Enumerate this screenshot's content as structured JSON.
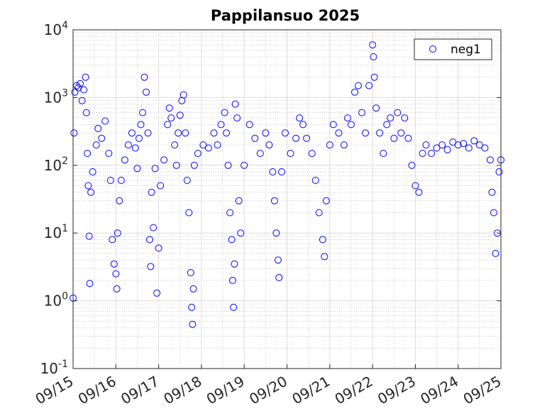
{
  "chart_data": {
    "type": "scatter",
    "title": "Pappilansuo 2025",
    "xlabel": "",
    "ylabel": "",
    "x_axis": {
      "type": "date",
      "range": [
        "2025-09-15",
        "2025-09-25"
      ],
      "tick_values": [
        "2025-09-15",
        "2025-09-16",
        "2025-09-17",
        "2025-09-18",
        "2025-09-19",
        "2025-09-20",
        "2025-09-21",
        "2025-09-22",
        "2025-09-23",
        "2025-09-24",
        "2025-09-25"
      ],
      "tick_labels": [
        "09/15",
        "09/16",
        "09/17",
        "09/18",
        "09/19",
        "09/20",
        "09/21",
        "09/22",
        "09/23",
        "09/24",
        "09/25"
      ]
    },
    "y_axis": {
      "scale": "log",
      "range": [
        0.1,
        10000
      ],
      "tick_values": [
        0.1,
        1,
        10,
        100,
        1000,
        10000
      ],
      "tick_labels": [
        {
          "base": "10",
          "exp": "-1"
        },
        {
          "base": "10",
          "exp": "0"
        },
        {
          "base": "10",
          "exp": "1"
        },
        {
          "base": "10",
          "exp": "2"
        },
        {
          "base": "10",
          "exp": "3"
        },
        {
          "base": "10",
          "exp": "4"
        }
      ]
    },
    "grid": {
      "major": true,
      "minor": true
    },
    "legend": {
      "placement": "top-right",
      "entries": [
        "neg1"
      ]
    },
    "series": [
      {
        "name": "neg1",
        "color": "#0000ff",
        "marker": "open-circle",
        "points": [
          [
            "2025-09-15T00:00",
            1.1
          ],
          [
            "2025-09-15T00:30",
            300
          ],
          [
            "2025-09-15T01:00",
            1200
          ],
          [
            "2025-09-15T02:00",
            1500
          ],
          [
            "2025-09-15T03:00",
            1400
          ],
          [
            "2025-09-15T04:00",
            1600
          ],
          [
            "2025-09-15T05:00",
            900
          ],
          [
            "2025-09-15T06:00",
            1300
          ],
          [
            "2025-09-15T07:00",
            2000
          ],
          [
            "2025-09-15T07:30",
            600
          ],
          [
            "2025-09-15T08:00",
            150
          ],
          [
            "2025-09-15T08:30",
            50
          ],
          [
            "2025-09-15T09:00",
            9
          ],
          [
            "2025-09-15T09:20",
            1.8
          ],
          [
            "2025-09-15T10:00",
            40
          ],
          [
            "2025-09-15T11:00",
            80
          ],
          [
            "2025-09-15T13:00",
            200
          ],
          [
            "2025-09-15T14:00",
            350
          ],
          [
            "2025-09-15T16:00",
            250
          ],
          [
            "2025-09-15T18:00",
            450
          ],
          [
            "2025-09-15T20:00",
            150
          ],
          [
            "2025-09-15T21:00",
            60
          ],
          [
            "2025-09-15T22:00",
            8
          ],
          [
            "2025-09-15T23:00",
            3.5
          ],
          [
            "2025-09-16T00:00",
            2.5
          ],
          [
            "2025-09-16T00:30",
            1.5
          ],
          [
            "2025-09-16T01:00",
            10
          ],
          [
            "2025-09-16T02:00",
            30
          ],
          [
            "2025-09-16T03:00",
            60
          ],
          [
            "2025-09-16T05:00",
            120
          ],
          [
            "2025-09-16T07:00",
            200
          ],
          [
            "2025-09-16T09:00",
            300
          ],
          [
            "2025-09-16T11:00",
            180
          ],
          [
            "2025-09-16T12:00",
            90
          ],
          [
            "2025-09-16T13:00",
            250
          ],
          [
            "2025-09-16T14:00",
            400
          ],
          [
            "2025-09-16T15:00",
            600
          ],
          [
            "2025-09-16T16:00",
            2000
          ],
          [
            "2025-09-16T17:00",
            1200
          ],
          [
            "2025-09-16T18:00",
            300
          ],
          [
            "2025-09-16T19:00",
            8
          ],
          [
            "2025-09-16T19:30",
            3.2
          ],
          [
            "2025-09-16T20:00",
            40
          ],
          [
            "2025-09-16T21:00",
            12
          ],
          [
            "2025-09-16T22:00",
            90
          ],
          [
            "2025-09-16T23:00",
            1.3
          ],
          [
            "2025-09-17T00:00",
            6
          ],
          [
            "2025-09-17T01:00",
            50
          ],
          [
            "2025-09-17T03:00",
            120
          ],
          [
            "2025-09-17T05:00",
            400
          ],
          [
            "2025-09-17T06:00",
            700
          ],
          [
            "2025-09-17T07:00",
            500
          ],
          [
            "2025-09-17T09:00",
            200
          ],
          [
            "2025-09-17T10:00",
            100
          ],
          [
            "2025-09-17T11:00",
            300
          ],
          [
            "2025-09-17T12:00",
            550
          ],
          [
            "2025-09-17T13:00",
            900
          ],
          [
            "2025-09-17T14:00",
            1100
          ],
          [
            "2025-09-17T15:00",
            300
          ],
          [
            "2025-09-17T16:00",
            60
          ],
          [
            "2025-09-17T17:00",
            20
          ],
          [
            "2025-09-17T18:00",
            2.6
          ],
          [
            "2025-09-17T18:30",
            0.8
          ],
          [
            "2025-09-17T19:00",
            0.45
          ],
          [
            "2025-09-17T19:30",
            1.5
          ],
          [
            "2025-09-17T20:00",
            100
          ],
          [
            "2025-09-17T22:00",
            150
          ],
          [
            "2025-09-18T01:00",
            200
          ],
          [
            "2025-09-18T04:00",
            180
          ],
          [
            "2025-09-18T07:00",
            300
          ],
          [
            "2025-09-18T09:00",
            200
          ],
          [
            "2025-09-18T11:00",
            400
          ],
          [
            "2025-09-18T13:00",
            600
          ],
          [
            "2025-09-18T14:00",
            300
          ],
          [
            "2025-09-18T15:00",
            100
          ],
          [
            "2025-09-18T16:00",
            20
          ],
          [
            "2025-09-18T17:00",
            8
          ],
          [
            "2025-09-18T17:30",
            2
          ],
          [
            "2025-09-18T18:00",
            0.8
          ],
          [
            "2025-09-18T18:30",
            3.5
          ],
          [
            "2025-09-18T19:00",
            800
          ],
          [
            "2025-09-18T20:00",
            500
          ],
          [
            "2025-09-18T21:00",
            30
          ],
          [
            "2025-09-18T22:00",
            10
          ],
          [
            "2025-09-19T00:00",
            100
          ],
          [
            "2025-09-19T03:00",
            400
          ],
          [
            "2025-09-19T06:00",
            250
          ],
          [
            "2025-09-19T09:00",
            150
          ],
          [
            "2025-09-19T12:00",
            300
          ],
          [
            "2025-09-19T14:00",
            200
          ],
          [
            "2025-09-19T16:00",
            80
          ],
          [
            "2025-09-19T17:00",
            30
          ],
          [
            "2025-09-19T18:00",
            10
          ],
          [
            "2025-09-19T19:00",
            4
          ],
          [
            "2025-09-19T19:30",
            2.2
          ],
          [
            "2025-09-19T21:00",
            80
          ],
          [
            "2025-09-19T23:00",
            300
          ],
          [
            "2025-09-20T02:00",
            150
          ],
          [
            "2025-09-20T05:00",
            250
          ],
          [
            "2025-09-20T07:00",
            500
          ],
          [
            "2025-09-20T09:00",
            400
          ],
          [
            "2025-09-20T11:00",
            250
          ],
          [
            "2025-09-20T14:00",
            150
          ],
          [
            "2025-09-20T16:00",
            60
          ],
          [
            "2025-09-20T18:00",
            20
          ],
          [
            "2025-09-20T20:00",
            8
          ],
          [
            "2025-09-20T21:00",
            4.5
          ],
          [
            "2025-09-20T22:00",
            30
          ],
          [
            "2025-09-21T00:00",
            200
          ],
          [
            "2025-09-21T02:00",
            400
          ],
          [
            "2025-09-21T05:00",
            300
          ],
          [
            "2025-09-21T08:00",
            200
          ],
          [
            "2025-09-21T10:00",
            500
          ],
          [
            "2025-09-21T12:00",
            400
          ],
          [
            "2025-09-21T14:00",
            1200
          ],
          [
            "2025-09-21T16:00",
            1500
          ],
          [
            "2025-09-21T18:00",
            600
          ],
          [
            "2025-09-21T20:00",
            300
          ],
          [
            "2025-09-21T22:00",
            1500
          ],
          [
            "2025-09-22T00:00",
            6000
          ],
          [
            "2025-09-22T00:30",
            4000
          ],
          [
            "2025-09-22T01:00",
            2000
          ],
          [
            "2025-09-22T02:00",
            700
          ],
          [
            "2025-09-22T04:00",
            300
          ],
          [
            "2025-09-22T06:00",
            150
          ],
          [
            "2025-09-22T08:00",
            400
          ],
          [
            "2025-09-22T10:00",
            500
          ],
          [
            "2025-09-22T12:00",
            250
          ],
          [
            "2025-09-22T14:00",
            600
          ],
          [
            "2025-09-22T16:00",
            300
          ],
          [
            "2025-09-22T18:00",
            500
          ],
          [
            "2025-09-22T20:00",
            250
          ],
          [
            "2025-09-22T22:00",
            100
          ],
          [
            "2025-09-23T00:00",
            50
          ],
          [
            "2025-09-23T02:00",
            40
          ],
          [
            "2025-09-23T04:00",
            150
          ],
          [
            "2025-09-23T06:00",
            200
          ],
          [
            "2025-09-23T09:00",
            150
          ],
          [
            "2025-09-23T12:00",
            180
          ],
          [
            "2025-09-23T15:00",
            200
          ],
          [
            "2025-09-23T18:00",
            170
          ],
          [
            "2025-09-23T21:00",
            220
          ],
          [
            "2025-09-24T00:00",
            200
          ],
          [
            "2025-09-24T03:00",
            210
          ],
          [
            "2025-09-24T06:00",
            180
          ],
          [
            "2025-09-24T09:00",
            230
          ],
          [
            "2025-09-24T12:00",
            200
          ],
          [
            "2025-09-24T15:00",
            180
          ],
          [
            "2025-09-24T18:00",
            120
          ],
          [
            "2025-09-24T19:00",
            40
          ],
          [
            "2025-09-24T20:00",
            20
          ],
          [
            "2025-09-24T21:00",
            5
          ],
          [
            "2025-09-24T22:00",
            10
          ],
          [
            "2025-09-24T23:00",
            80
          ],
          [
            "2025-09-25T00:00",
            120
          ]
        ]
      }
    ]
  }
}
